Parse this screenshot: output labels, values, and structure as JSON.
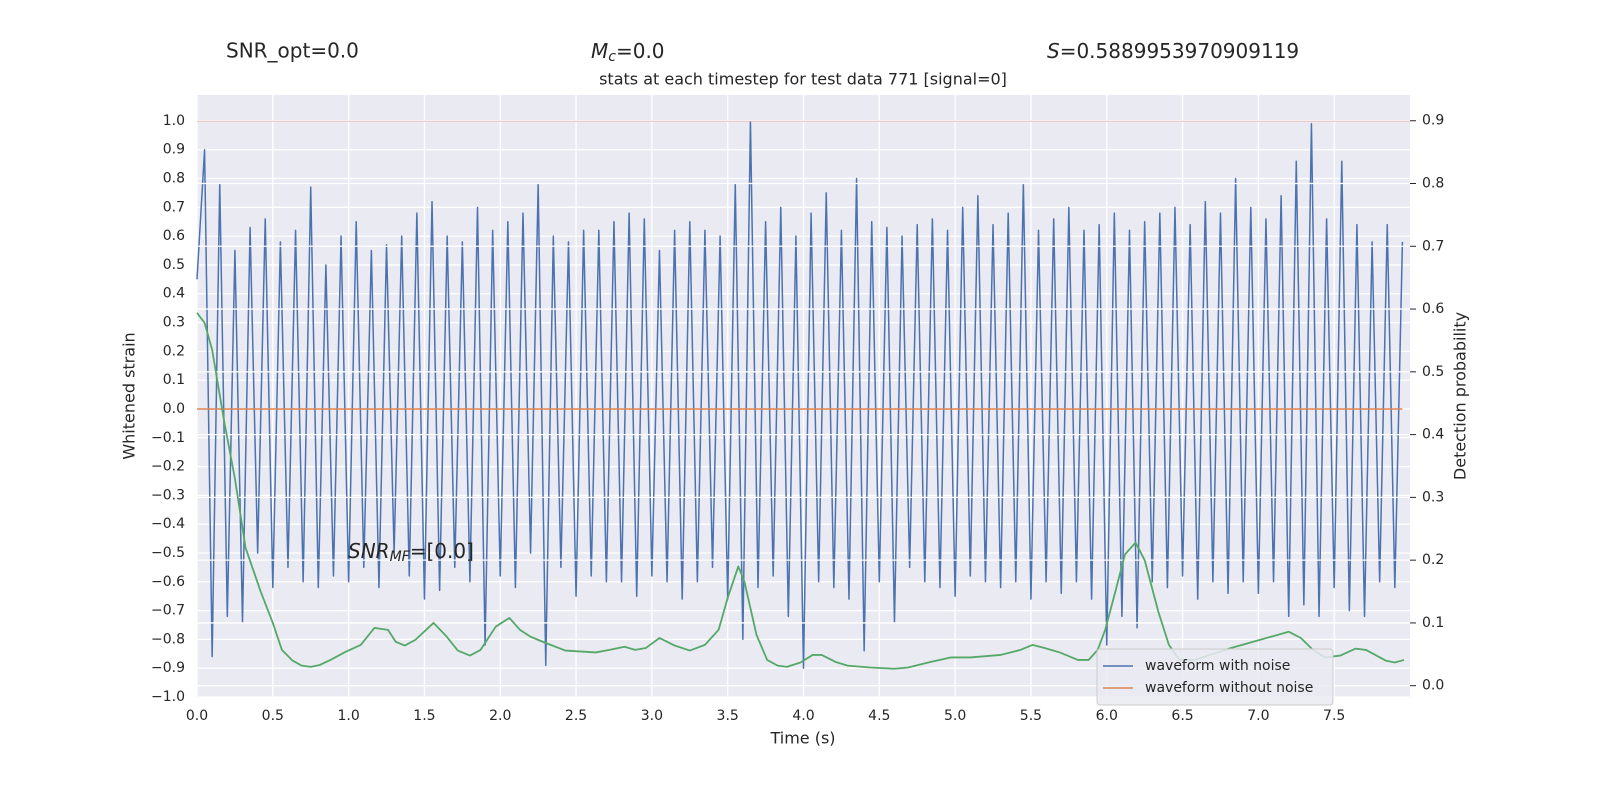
{
  "chart_data": {
    "type": "line",
    "header": {
      "snr_opt": "SNR_opt=0.0",
      "mc": {
        "base": "M",
        "sub": "c",
        "rest": "=0.0"
      },
      "s": {
        "base": "S",
        "rest": "=0.5889953970909119"
      }
    },
    "title": "stats at each timestep for test data 771 [signal=0]",
    "annotation": {
      "base": "SNR",
      "sub": "MF",
      "rest": "=[0.0]"
    },
    "xlabel": "Time (s)",
    "ylabel": "Whitened strain",
    "y2label": "Detection probability",
    "xlim": [
      0,
      8.0
    ],
    "ylim": [
      -1.0,
      1.09
    ],
    "y2lim": [
      -0.018,
      0.941
    ],
    "grid": true,
    "legend": "lower right",
    "xticks": [
      {
        "value": 0,
        "label": "0.0"
      },
      {
        "value": 0.5,
        "label": "0.5"
      },
      {
        "value": 1,
        "label": "1.0"
      },
      {
        "value": 1.5,
        "label": "1.5"
      },
      {
        "value": 2,
        "label": "2.0"
      },
      {
        "value": 2.5,
        "label": "2.5"
      },
      {
        "value": 3,
        "label": "3.0"
      },
      {
        "value": 3.5,
        "label": "3.5"
      },
      {
        "value": 4,
        "label": "4.0"
      },
      {
        "value": 4.5,
        "label": "4.5"
      },
      {
        "value": 5,
        "label": "5.0"
      },
      {
        "value": 5.5,
        "label": "5.5"
      },
      {
        "value": 6,
        "label": "6.0"
      },
      {
        "value": 6.5,
        "label": "6.5"
      },
      {
        "value": 7,
        "label": "7.0"
      },
      {
        "value": 7.5,
        "label": "7.5"
      }
    ],
    "yticks": [
      {
        "value": -1.0,
        "label": "−1.0"
      },
      {
        "value": -0.9,
        "label": "−0.9"
      },
      {
        "value": -0.8,
        "label": "−0.8"
      },
      {
        "value": -0.7,
        "label": "−0.7"
      },
      {
        "value": -0.6,
        "label": "−0.6"
      },
      {
        "value": -0.5,
        "label": "−0.5"
      },
      {
        "value": -0.4,
        "label": "−0.4"
      },
      {
        "value": -0.3,
        "label": "−0.3"
      },
      {
        "value": -0.2,
        "label": "−0.2"
      },
      {
        "value": -0.1,
        "label": "−0.1"
      },
      {
        "value": 0,
        "label": "0.0"
      },
      {
        "value": 0.1,
        "label": "0.1"
      },
      {
        "value": 0.2,
        "label": "0.2"
      },
      {
        "value": 0.3,
        "label": "0.3"
      },
      {
        "value": 0.4,
        "label": "0.4"
      },
      {
        "value": 0.5,
        "label": "0.5"
      },
      {
        "value": 0.6,
        "label": "0.6"
      },
      {
        "value": 0.7,
        "label": "0.7"
      },
      {
        "value": 0.8,
        "label": "0.8"
      },
      {
        "value": 0.9,
        "label": "0.9"
      },
      {
        "value": 1.0,
        "label": "1.0"
      }
    ],
    "y2ticks": [
      {
        "value": 0,
        "label": "0.0"
      },
      {
        "value": 0.1,
        "label": "0.1"
      },
      {
        "value": 0.2,
        "label": "0.2"
      },
      {
        "value": 0.3,
        "label": "0.3"
      },
      {
        "value": 0.4,
        "label": "0.4"
      },
      {
        "value": 0.5,
        "label": "0.5"
      },
      {
        "value": 0.6,
        "label": "0.6"
      },
      {
        "value": 0.7,
        "label": "0.7"
      },
      {
        "value": 0.8,
        "label": "0.8"
      },
      {
        "value": 0.9,
        "label": "0.9"
      }
    ],
    "hline": {
      "value": 1.0,
      "color": "#c44e52"
    },
    "series": [
      {
        "name": "waveform with noise",
        "color": "#4c72b0",
        "x": [
          0,
          0.05,
          0.1,
          0.15,
          0.2,
          0.25,
          0.3,
          0.35,
          0.4,
          0.45,
          0.5,
          0.55,
          0.6,
          0.65,
          0.7,
          0.75,
          0.8,
          0.85,
          0.9,
          0.95,
          1,
          1.05,
          1.1,
          1.15,
          1.2,
          1.25,
          1.3,
          1.35,
          1.4,
          1.45,
          1.5,
          1.55,
          1.6,
          1.65,
          1.7,
          1.75,
          1.8,
          1.85,
          1.9,
          1.95,
          2,
          2.05,
          2.1,
          2.15,
          2.2,
          2.25,
          2.3,
          2.35,
          2.4,
          2.45,
          2.5,
          2.55,
          2.6,
          2.65,
          2.7,
          2.75,
          2.8,
          2.85,
          2.9,
          2.95,
          3,
          3.05,
          3.1,
          3.15,
          3.2,
          3.25,
          3.3,
          3.35,
          3.4,
          3.45,
          3.5,
          3.55,
          3.6,
          3.65,
          3.7,
          3.75,
          3.8,
          3.85,
          3.9,
          3.95,
          4,
          4.05,
          4.1,
          4.15,
          4.2,
          4.25,
          4.3,
          4.35,
          4.4,
          4.45,
          4.5,
          4.55,
          4.6,
          4.65,
          4.7,
          4.75,
          4.8,
          4.85,
          4.9,
          4.95,
          5,
          5.05,
          5.1,
          5.15,
          5.2,
          5.25,
          5.3,
          5.35,
          5.4,
          5.45,
          5.5,
          5.55,
          5.6,
          5.65,
          5.7,
          5.75,
          5.8,
          5.85,
          5.9,
          5.95,
          6,
          6.05,
          6.1,
          6.15,
          6.2,
          6.25,
          6.3,
          6.35,
          6.4,
          6.45,
          6.5,
          6.55,
          6.6,
          6.65,
          6.7,
          6.75,
          6.8,
          6.85,
          6.9,
          6.95,
          7,
          7.05,
          7.1,
          7.15,
          7.2,
          7.25,
          7.3,
          7.35,
          7.4,
          7.45,
          7.5,
          7.55,
          7.6,
          7.65,
          7.7,
          7.75,
          7.8,
          7.85,
          7.9,
          7.95
        ],
        "values": [
          0.45,
          0.9,
          -0.86,
          0.78,
          -0.72,
          0.55,
          -0.74,
          0.63,
          -0.5,
          0.66,
          -0.62,
          0.58,
          -0.55,
          0.62,
          -0.6,
          0.77,
          -0.62,
          0.5,
          -0.58,
          0.6,
          -0.6,
          0.65,
          -0.55,
          0.55,
          -0.62,
          0.57,
          -0.5,
          0.6,
          -0.58,
          0.68,
          -0.66,
          0.72,
          -0.63,
          0.6,
          -0.55,
          0.58,
          -0.6,
          0.7,
          -0.82,
          0.62,
          -0.58,
          0.65,
          -0.62,
          0.68,
          -0.5,
          0.78,
          -0.89,
          0.6,
          -0.55,
          0.58,
          -0.65,
          0.62,
          -0.58,
          0.62,
          -0.6,
          0.65,
          -0.6,
          0.68,
          -0.65,
          0.66,
          -0.58,
          0.55,
          -0.6,
          0.62,
          -0.66,
          0.65,
          -0.6,
          0.62,
          -0.55,
          0.6,
          -0.66,
          0.78,
          -0.8,
          1.0,
          -0.62,
          0.65,
          -0.58,
          0.7,
          -0.72,
          0.6,
          -0.9,
          0.68,
          -0.6,
          0.75,
          -0.62,
          0.62,
          -0.66,
          0.8,
          -0.84,
          0.65,
          -0.6,
          0.63,
          -0.74,
          0.6,
          -0.55,
          0.64,
          -0.6,
          0.66,
          -0.62,
          0.62,
          -0.65,
          0.7,
          -0.58,
          0.74,
          -0.6,
          0.64,
          -0.62,
          0.68,
          -0.6,
          0.78,
          -0.66,
          0.62,
          -0.6,
          0.66,
          -0.64,
          0.7,
          -0.6,
          0.62,
          -0.66,
          0.64,
          -0.82,
          0.68,
          -0.72,
          0.62,
          -0.76,
          0.65,
          -0.6,
          0.68,
          -0.62,
          0.7,
          -0.58,
          0.64,
          -0.66,
          0.72,
          -0.6,
          0.68,
          -0.64,
          0.8,
          -0.6,
          0.7,
          -0.64,
          0.66,
          -0.6,
          0.74,
          -0.72,
          0.86,
          -0.68,
          0.99,
          -0.72,
          0.66,
          -0.62,
          0.86,
          -0.7,
          0.64,
          -0.72,
          0.58,
          -0.6,
          0.64,
          -0.62,
          0.58
        ]
      },
      {
        "name": "waveform without noise",
        "color": "#dd8452",
        "x": [
          0,
          7.95
        ],
        "values": [
          0,
          0
        ]
      },
      {
        "color": "#55a868",
        "axis": "y2",
        "x": [
          0,
          0.05,
          0.1,
          0.18,
          0.25,
          0.32,
          0.42,
          0.5,
          0.56,
          0.63,
          0.69,
          0.75,
          0.81,
          0.88,
          0.98,
          1.08,
          1.17,
          1.26,
          1.31,
          1.37,
          1.44,
          1.56,
          1.64,
          1.72,
          1.8,
          1.87,
          1.97,
          2.06,
          2.13,
          2.2,
          2.3,
          2.43,
          2.63,
          2.72,
          2.82,
          2.89,
          2.96,
          3.05,
          3.15,
          3.25,
          3.35,
          3.44,
          3.5,
          3.57,
          3.61,
          3.69,
          3.76,
          3.83,
          3.89,
          3.98,
          4.06,
          4.12,
          4.21,
          4.29,
          4.44,
          4.6,
          4.69,
          4.84,
          4.97,
          5.1,
          5.3,
          5.43,
          5.51,
          5.59,
          5.69,
          5.81,
          5.88,
          5.94,
          5.99,
          6.06,
          6.12,
          6.19,
          6.25,
          6.34,
          6.41,
          6.48,
          6.58,
          6.68,
          6.82,
          7.01,
          7.2,
          7.28,
          7.36,
          7.44,
          7.54,
          7.64,
          7.71,
          7.84,
          7.9,
          7.96
        ],
        "values": [
          0.594,
          0.578,
          0.535,
          0.42,
          0.33,
          0.22,
          0.15,
          0.1,
          0.057,
          0.04,
          0.032,
          0.03,
          0.033,
          0.041,
          0.054,
          0.065,
          0.092,
          0.089,
          0.07,
          0.064,
          0.073,
          0.1,
          0.08,
          0.056,
          0.048,
          0.057,
          0.094,
          0.108,
          0.089,
          0.078,
          0.068,
          0.056,
          0.053,
          0.057,
          0.062,
          0.057,
          0.06,
          0.076,
          0.064,
          0.056,
          0.065,
          0.089,
          0.14,
          0.19,
          0.166,
          0.081,
          0.041,
          0.032,
          0.03,
          0.037,
          0.049,
          0.049,
          0.038,
          0.032,
          0.029,
          0.027,
          0.029,
          0.038,
          0.045,
          0.045,
          0.049,
          0.057,
          0.065,
          0.06,
          0.053,
          0.041,
          0.041,
          0.057,
          0.089,
          0.153,
          0.209,
          0.228,
          0.2,
          0.118,
          0.065,
          0.041,
          0.041,
          0.049,
          0.06,
          0.073,
          0.086,
          0.076,
          0.057,
          0.045,
          0.048,
          0.059,
          0.057,
          0.04,
          0.037,
          0.041
        ]
      }
    ]
  }
}
